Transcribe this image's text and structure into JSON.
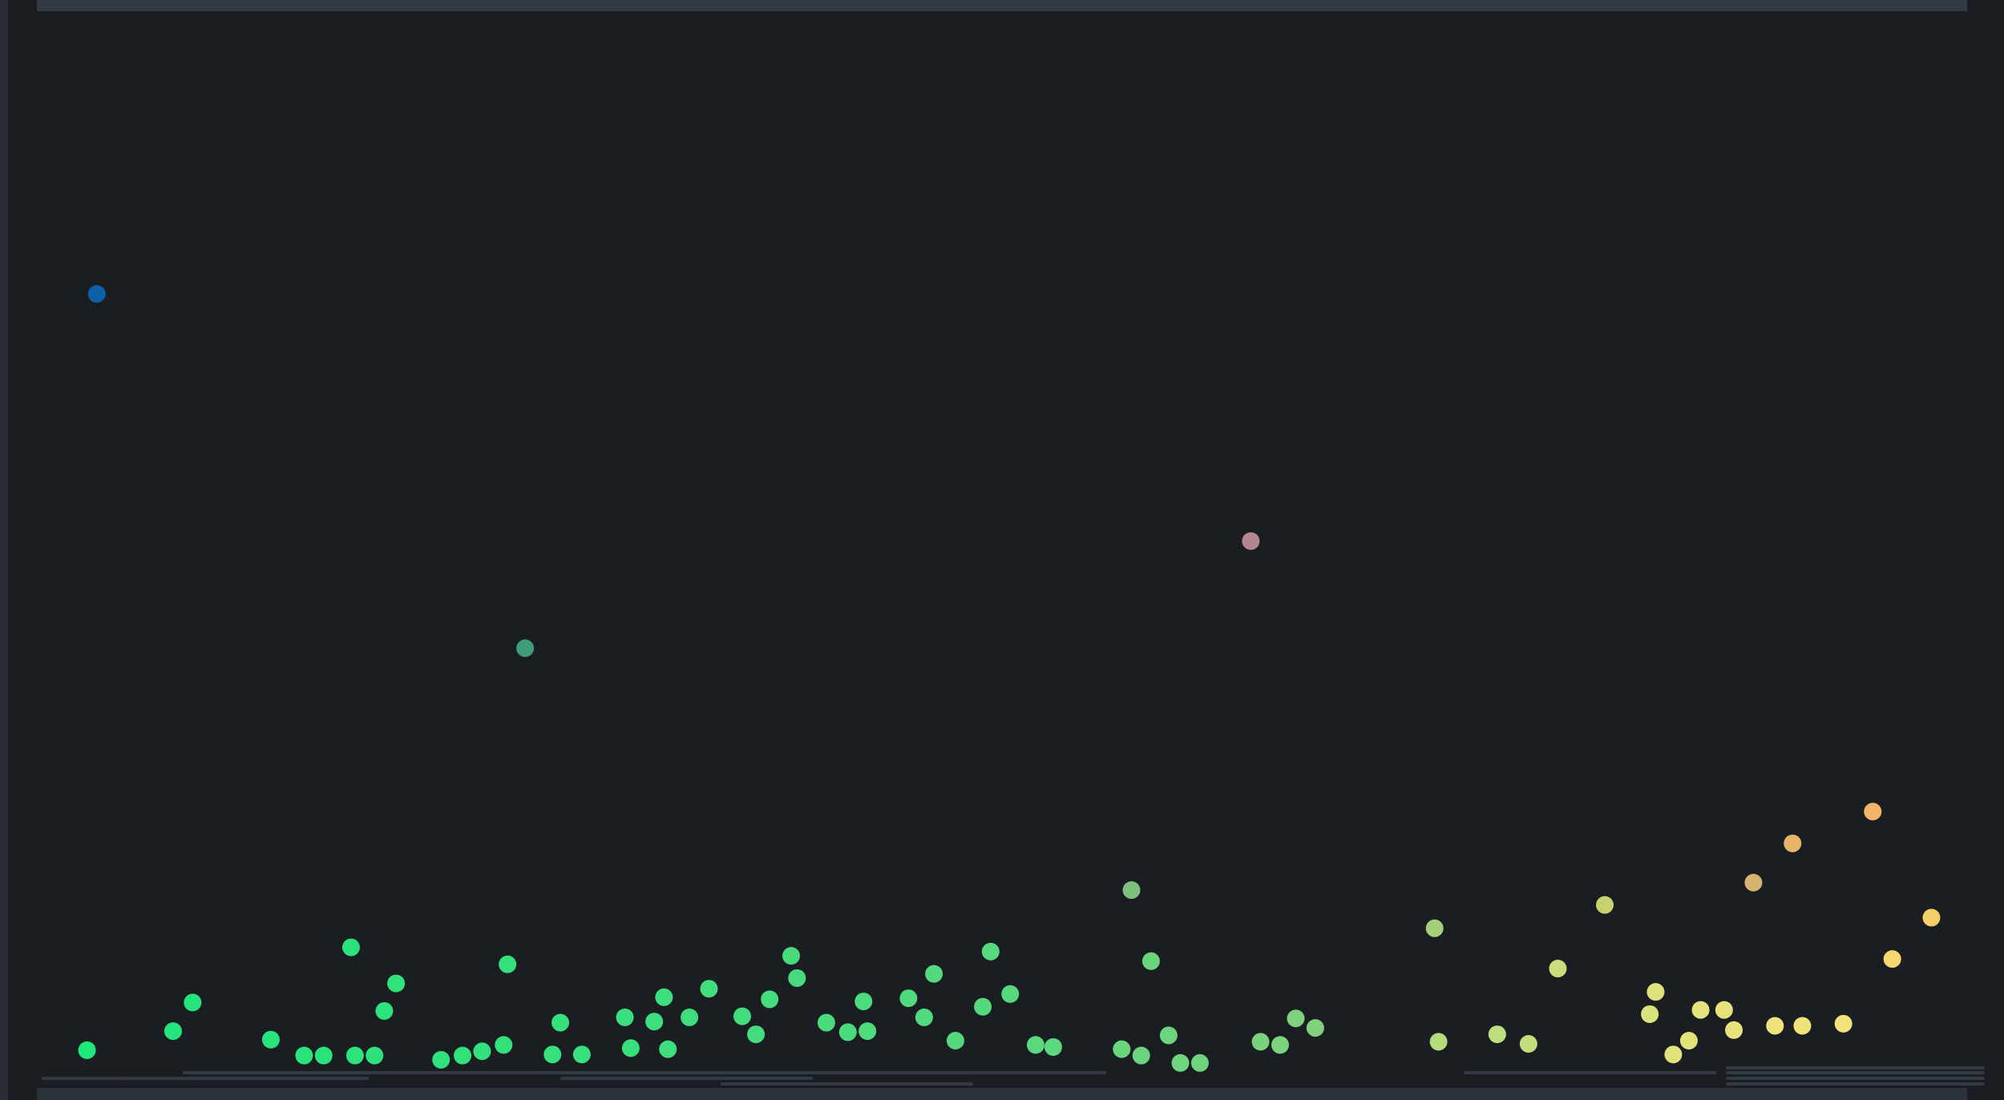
{
  "colors": {
    "background": "#1a1e22",
    "frame": "#323b43",
    "tick": "#323a42",
    "scale_start": "#1ee87a",
    "scale_end": "#f6e27a"
  },
  "chart_data": {
    "type": "scatter",
    "title": "",
    "xlabel": "",
    "ylabel": "",
    "xlim": [
      0,
      100
    ],
    "ylim": [
      0,
      100
    ],
    "grid": false,
    "legend": "none",
    "points": [
      {
        "x": 2.9,
        "y": 73.8,
        "color": "#0d5fa8"
      },
      {
        "x": 24.8,
        "y": 40.4,
        "color": "#3f9c79"
      },
      {
        "x": 61.9,
        "y": 50.5,
        "color": "#b48690"
      },
      {
        "x": 2.4,
        "y": 2.5,
        "color": "#1ee87a"
      },
      {
        "x": 6.8,
        "y": 4.3,
        "color": "#23e57b"
      },
      {
        "x": 7.8,
        "y": 7.0,
        "color": "#26e47b"
      },
      {
        "x": 11.8,
        "y": 3.5,
        "color": "#28e47c"
      },
      {
        "x": 13.5,
        "y": 2.0,
        "color": "#2ae37c"
      },
      {
        "x": 14.5,
        "y": 2.0,
        "color": "#2be37c"
      },
      {
        "x": 15.9,
        "y": 12.2,
        "color": "#2ae27c"
      },
      {
        "x": 16.1,
        "y": 2.0,
        "color": "#2ce37c"
      },
      {
        "x": 17.1,
        "y": 2.0,
        "color": "#2de27c"
      },
      {
        "x": 17.6,
        "y": 6.2,
        "color": "#2ee27c"
      },
      {
        "x": 18.2,
        "y": 8.8,
        "color": "#2fe27c"
      },
      {
        "x": 20.5,
        "y": 1.6,
        "color": "#31e17c"
      },
      {
        "x": 21.6,
        "y": 2.0,
        "color": "#32e17c"
      },
      {
        "x": 22.6,
        "y": 2.4,
        "color": "#33e17c"
      },
      {
        "x": 23.7,
        "y": 3.0,
        "color": "#34e07c"
      },
      {
        "x": 23.9,
        "y": 10.6,
        "color": "#35e07c"
      },
      {
        "x": 26.2,
        "y": 2.1,
        "color": "#36e07d"
      },
      {
        "x": 26.6,
        "y": 5.1,
        "color": "#37df7d"
      },
      {
        "x": 27.7,
        "y": 2.1,
        "color": "#38df7d"
      },
      {
        "x": 29.9,
        "y": 5.6,
        "color": "#3ade7d"
      },
      {
        "x": 30.2,
        "y": 2.7,
        "color": "#3bde7d"
      },
      {
        "x": 31.4,
        "y": 5.2,
        "color": "#3cde7d"
      },
      {
        "x": 31.9,
        "y": 7.5,
        "color": "#3dde7d"
      },
      {
        "x": 32.1,
        "y": 2.6,
        "color": "#3edd7d"
      },
      {
        "x": 33.2,
        "y": 5.6,
        "color": "#3fdd7d"
      },
      {
        "x": 34.2,
        "y": 8.3,
        "color": "#41dd7d"
      },
      {
        "x": 35.9,
        "y": 5.7,
        "color": "#43dc7d"
      },
      {
        "x": 36.6,
        "y": 4.0,
        "color": "#44dc7d"
      },
      {
        "x": 37.3,
        "y": 7.3,
        "color": "#45dc7d"
      },
      {
        "x": 38.4,
        "y": 11.4,
        "color": "#47db7d"
      },
      {
        "x": 38.7,
        "y": 9.3,
        "color": "#48db7d"
      },
      {
        "x": 40.2,
        "y": 5.1,
        "color": "#4adb7d"
      },
      {
        "x": 41.3,
        "y": 4.2,
        "color": "#4bdb7d"
      },
      {
        "x": 42.1,
        "y": 7.1,
        "color": "#4cdb7d"
      },
      {
        "x": 42.3,
        "y": 4.3,
        "color": "#4ddb7d"
      },
      {
        "x": 44.4,
        "y": 7.4,
        "color": "#50da7d"
      },
      {
        "x": 45.2,
        "y": 5.6,
        "color": "#51da7d"
      },
      {
        "x": 45.7,
        "y": 9.7,
        "color": "#52da7d"
      },
      {
        "x": 46.8,
        "y": 3.4,
        "color": "#54d97d"
      },
      {
        "x": 48.2,
        "y": 6.6,
        "color": "#56d97d"
      },
      {
        "x": 48.6,
        "y": 11.8,
        "color": "#57d97d"
      },
      {
        "x": 49.6,
        "y": 7.8,
        "color": "#58d87d"
      },
      {
        "x": 50.9,
        "y": 3.0,
        "color": "#5bd87e"
      },
      {
        "x": 51.8,
        "y": 2.8,
        "color": "#5cd87e"
      },
      {
        "x": 55.3,
        "y": 2.6,
        "color": "#69d67e"
      },
      {
        "x": 55.8,
        "y": 17.6,
        "color": "#7fc07f"
      },
      {
        "x": 56.3,
        "y": 2.0,
        "color": "#6ad57e"
      },
      {
        "x": 56.8,
        "y": 10.9,
        "color": "#6bd57e"
      },
      {
        "x": 57.7,
        "y": 3.9,
        "color": "#6dd57e"
      },
      {
        "x": 58.3,
        "y": 1.3,
        "color": "#6ed47e"
      },
      {
        "x": 59.3,
        "y": 1.3,
        "color": "#70d47e"
      },
      {
        "x": 62.4,
        "y": 3.3,
        "color": "#7bd27e"
      },
      {
        "x": 63.4,
        "y": 3.0,
        "color": "#7dd27e"
      },
      {
        "x": 64.2,
        "y": 5.5,
        "color": "#7fd17e"
      },
      {
        "x": 65.2,
        "y": 4.6,
        "color": "#82d17e"
      },
      {
        "x": 71.3,
        "y": 14.0,
        "color": "#a6cf7b"
      },
      {
        "x": 71.5,
        "y": 3.3,
        "color": "#b4dc7d"
      },
      {
        "x": 74.5,
        "y": 4.0,
        "color": "#bedd7c"
      },
      {
        "x": 76.1,
        "y": 3.1,
        "color": "#c3dd7c"
      },
      {
        "x": 77.6,
        "y": 10.2,
        "color": "#c8dd7b"
      },
      {
        "x": 80.0,
        "y": 16.2,
        "color": "#c9d070"
      },
      {
        "x": 82.3,
        "y": 5.9,
        "color": "#dce27b"
      },
      {
        "x": 82.6,
        "y": 8.0,
        "color": "#dde27b"
      },
      {
        "x": 83.5,
        "y": 2.1,
        "color": "#e0e27b"
      },
      {
        "x": 84.3,
        "y": 3.4,
        "color": "#e2e27b"
      },
      {
        "x": 84.9,
        "y": 6.3,
        "color": "#e3e27b"
      },
      {
        "x": 86.1,
        "y": 6.3,
        "color": "#e7e27b"
      },
      {
        "x": 86.6,
        "y": 4.4,
        "color": "#e8e27b"
      },
      {
        "x": 87.6,
        "y": 18.3,
        "color": "#d4b46e"
      },
      {
        "x": 88.7,
        "y": 4.8,
        "color": "#ede27b"
      },
      {
        "x": 89.6,
        "y": 22.0,
        "color": "#e7b56a"
      },
      {
        "x": 90.1,
        "y": 4.8,
        "color": "#f0e27b"
      },
      {
        "x": 92.2,
        "y": 5.0,
        "color": "#f3e27a"
      },
      {
        "x": 93.7,
        "y": 25.0,
        "color": "#f4b46a"
      },
      {
        "x": 94.7,
        "y": 11.1,
        "color": "#f7d86f"
      },
      {
        "x": 96.7,
        "y": 15.0,
        "color": "#f7cf68"
      }
    ],
    "ticks": [
      {
        "x0": 0.1,
        "x1": 4.3,
        "row": 0
      },
      {
        "x0": 4.3,
        "x1": 8.4,
        "row": 0
      },
      {
        "x0": 8.4,
        "x1": 12.6,
        "row": 0
      },
      {
        "x0": 12.6,
        "x1": 16.8,
        "row": 0
      },
      {
        "x0": 7.3,
        "x1": 34.5,
        "row": 1
      },
      {
        "x0": 26.6,
        "x1": 39.5,
        "row": 0
      },
      {
        "x0": 32.5,
        "x1": 45.2,
        "row": 1
      },
      {
        "x0": 34.8,
        "x1": 47.7,
        "row": 2
      },
      {
        "x0": 41.6,
        "x1": 54.5,
        "row": 1
      },
      {
        "x0": 72.8,
        "x1": 85.7,
        "row": 1
      },
      {
        "x0": 86.2,
        "x1": 99.4,
        "row": 1
      },
      {
        "x0": 86.2,
        "x1": 99.4,
        "row": 0
      },
      {
        "x0": 86.2,
        "x1": 99.4,
        "row": 2
      },
      {
        "x0": 86.2,
        "x1": 99.4,
        "row": 3
      }
    ]
  }
}
